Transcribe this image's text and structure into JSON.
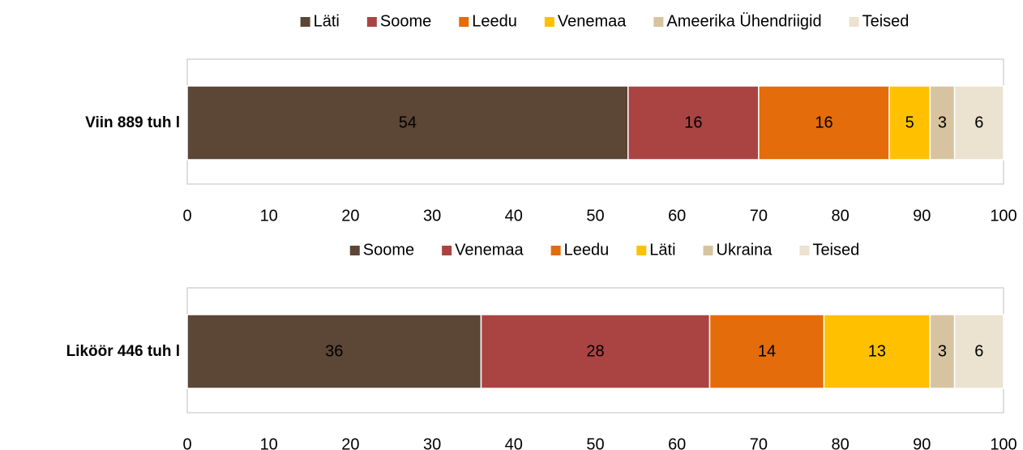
{
  "chart_data": [
    {
      "type": "stacked_bar_horizontal",
      "categories": [
        "Viin 889 tuh l"
      ],
      "series": [
        {
          "name": "Läti",
          "color": "#5c4636",
          "values": [
            54
          ]
        },
        {
          "name": "Soome",
          "color": "#a94442",
          "values": [
            16
          ]
        },
        {
          "name": "Leedu",
          "color": "#e46c0a",
          "values": [
            16
          ]
        },
        {
          "name": "Venemaa",
          "color": "#ffc000",
          "values": [
            5
          ]
        },
        {
          "name": "Ameerika Ühendriigid",
          "color": "#d7c39f",
          "values": [
            3
          ]
        },
        {
          "name": "Teised",
          "color": "#ebe2d0",
          "values": [
            6
          ]
        }
      ],
      "xlim": [
        0,
        100
      ],
      "xticks": [
        0,
        10,
        20,
        30,
        40,
        50,
        60,
        70,
        80,
        90,
        100
      ],
      "legend": "top"
    },
    {
      "type": "stacked_bar_horizontal",
      "categories": [
        "Liköör 446 tuh l"
      ],
      "series": [
        {
          "name": "Soome",
          "color": "#5c4636",
          "values": [
            36
          ]
        },
        {
          "name": "Venemaa",
          "color": "#a94442",
          "values": [
            28
          ]
        },
        {
          "name": "Leedu",
          "color": "#e46c0a",
          "values": [
            14
          ]
        },
        {
          "name": "Läti",
          "color": "#ffc000",
          "values": [
            13
          ]
        },
        {
          "name": "Ukraina",
          "color": "#d7c39f",
          "values": [
            3
          ]
        },
        {
          "name": "Teised",
          "color": "#ebe2d0",
          "values": [
            6
          ]
        }
      ],
      "xlim": [
        0,
        100
      ],
      "xticks": [
        0,
        10,
        20,
        30,
        40,
        50,
        60,
        70,
        80,
        90,
        100
      ],
      "legend": "top"
    }
  ]
}
